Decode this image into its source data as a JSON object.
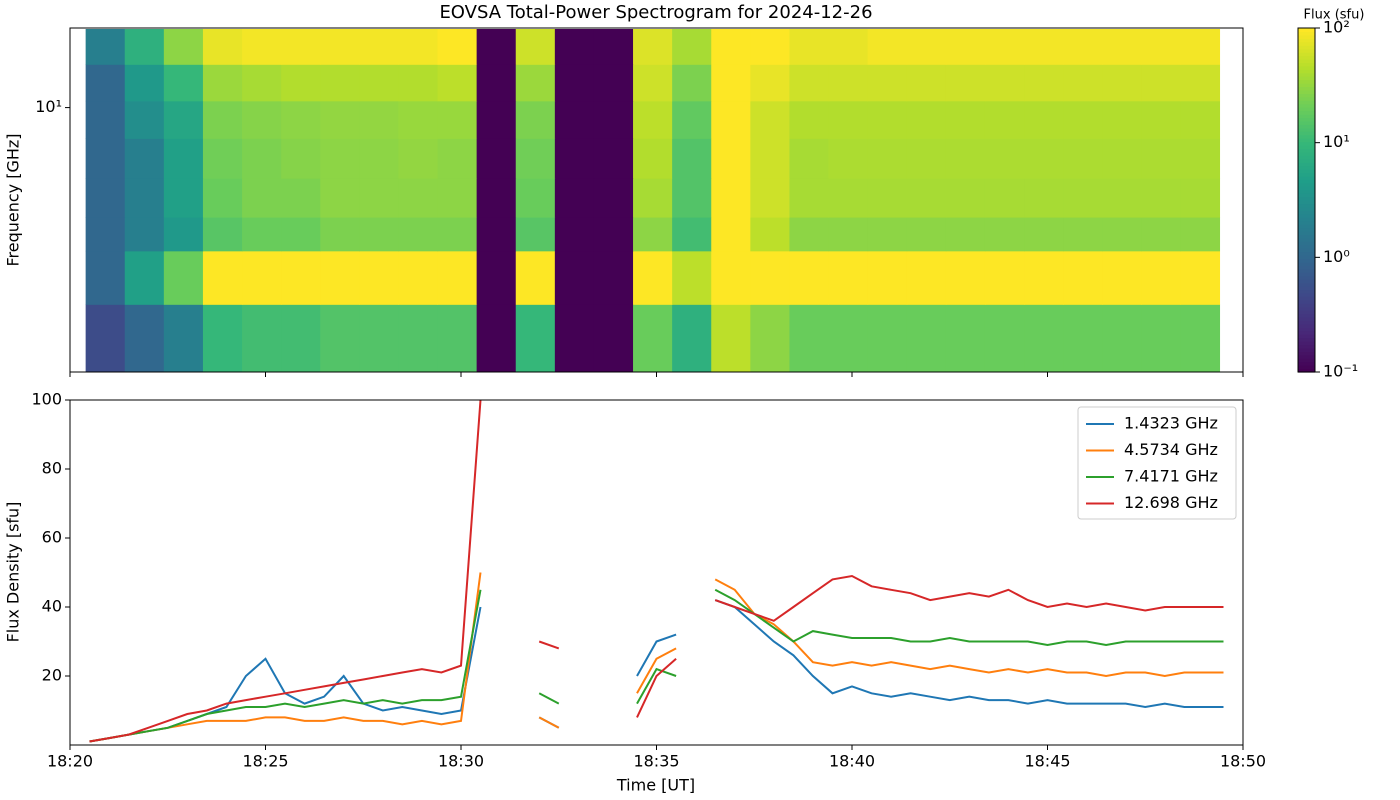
{
  "chart_data": [
    {
      "type": "heatmap",
      "title": "EOVSA Total-Power Spectrogram for 2024-12-26",
      "ylabel": "Frequency [GHz]",
      "log_y": true,
      "xlim": [
        1100,
        1130
      ],
      "ylim": [
        1,
        20
      ],
      "yticks": [
        {
          "value": 10,
          "label": "10¹"
        }
      ],
      "x": [
        1100.9,
        1101.9,
        1102.9,
        1103.9,
        1104.9,
        1105.9,
        1106.9,
        1107.9,
        1108.9,
        1109.9,
        1110.9,
        1111.9,
        1112.9,
        1113.9,
        1114.9,
        1115.9,
        1116.9,
        1117.9,
        1118.9,
        1119.9,
        1120.9,
        1121.9,
        1122.9,
        1123.9,
        1124.9,
        1125.9,
        1126.9,
        1127.9,
        1128.9
      ],
      "y": [
        1.3,
        2.5,
        3.3,
        4.5,
        6.5,
        9,
        12.5,
        17
      ],
      "z": [
        [
          0.5,
          1,
          2,
          10,
          12,
          12,
          15,
          15,
          15,
          15,
          0.1,
          10,
          0.1,
          0.1,
          20,
          8,
          50,
          30,
          20,
          20,
          20,
          20,
          20,
          20,
          20,
          20,
          20,
          20,
          20
        ],
        [
          1,
          5,
          20,
          100,
          100,
          100,
          100,
          100,
          100,
          100,
          0.1,
          100,
          0.1,
          0.1,
          100,
          50,
          100,
          100,
          100,
          100,
          100,
          100,
          100,
          100,
          100,
          100,
          100,
          100,
          100
        ],
        [
          1,
          2,
          4,
          16,
          20,
          20,
          25,
          25,
          25,
          25,
          0.1,
          16,
          0.1,
          0.1,
          30,
          12,
          100,
          50,
          30,
          30,
          30,
          30,
          30,
          30,
          30,
          30,
          30,
          30,
          30
        ],
        [
          1,
          2,
          5,
          20,
          25,
          25,
          30,
          30,
          30,
          30,
          0.1,
          20,
          0.1,
          0.1,
          40,
          15,
          100,
          60,
          40,
          40,
          40,
          40,
          40,
          40,
          40,
          40,
          40,
          40,
          40
        ],
        [
          1,
          2,
          5,
          22,
          25,
          28,
          30,
          30,
          32,
          30,
          0.1,
          22,
          0.1,
          0.1,
          45,
          15,
          100,
          60,
          40,
          42,
          42,
          42,
          42,
          42,
          42,
          42,
          42,
          42,
          42
        ],
        [
          1,
          3,
          6,
          25,
          28,
          30,
          32,
          32,
          34,
          34,
          0.1,
          25,
          0.1,
          0.1,
          50,
          18,
          100,
          60,
          45,
          45,
          45,
          45,
          45,
          45,
          45,
          45,
          45,
          45,
          45
        ],
        [
          1,
          4,
          10,
          35,
          40,
          45,
          45,
          45,
          45,
          50,
          0.1,
          35,
          0.1,
          0.1,
          60,
          25,
          100,
          80,
          60,
          60,
          60,
          60,
          60,
          60,
          60,
          60,
          60,
          60,
          60
        ],
        [
          2,
          8,
          30,
          80,
          90,
          90,
          90,
          90,
          90,
          100,
          0.1,
          60,
          0.1,
          0.1,
          70,
          40,
          100,
          100,
          80,
          80,
          90,
          90,
          90,
          90,
          90,
          90,
          90,
          90,
          90
        ]
      ],
      "colorbar": {
        "label": "Flux (sfu)",
        "log": true,
        "lim": [
          0.1,
          100
        ],
        "ticks": [
          {
            "value": 0.1,
            "label": "10⁻¹"
          },
          {
            "value": 1,
            "label": "10⁰"
          },
          {
            "value": 10,
            "label": "10¹"
          },
          {
            "value": 100,
            "label": "10²"
          }
        ]
      }
    },
    {
      "type": "line",
      "xlabel": "Time [UT]",
      "ylabel": "Flux Density [sfu]",
      "xlim": [
        1100,
        1130
      ],
      "ylim": [
        0,
        100
      ],
      "xticks": [
        {
          "value": 1100,
          "label": "18:20"
        },
        {
          "value": 1105,
          "label": "18:25"
        },
        {
          "value": 1110,
          "label": "18:30"
        },
        {
          "value": 1115,
          "label": "18:35"
        },
        {
          "value": 1120,
          "label": "18:40"
        },
        {
          "value": 1125,
          "label": "18:45"
        },
        {
          "value": 1130,
          "label": "18:50"
        }
      ],
      "yticks": [
        20,
        40,
        60,
        80,
        100
      ],
      "legend": "upper right",
      "x": [
        1100.5,
        1101,
        1101.5,
        1102,
        1102.5,
        1103,
        1103.5,
        1104,
        1104.5,
        1105,
        1105.5,
        1106,
        1106.5,
        1107,
        1107.5,
        1108,
        1108.5,
        1109,
        1109.5,
        1110,
        1110.5,
        1111,
        1111.5,
        1112,
        1112.5,
        1113,
        1113.5,
        1114,
        1114.5,
        1115,
        1115.5,
        1116,
        1116.5,
        1117,
        1117.5,
        1118,
        1118.5,
        1119,
        1119.5,
        1120,
        1120.5,
        1121,
        1121.5,
        1122,
        1122.5,
        1123,
        1123.5,
        1124,
        1124.5,
        1125,
        1125.5,
        1126,
        1126.5,
        1127,
        1127.5,
        1128,
        1128.5,
        1129,
        1129.5
      ],
      "series": [
        {
          "name": "1.4323 GHz",
          "color": "#1f77b4",
          "values": [
            1,
            2,
            3,
            4,
            5,
            7,
            9,
            11,
            20,
            25,
            15,
            12,
            14,
            20,
            12,
            10,
            11,
            10,
            9,
            10,
            40,
            null,
            null,
            8,
            5,
            null,
            null,
            null,
            20,
            30,
            32,
            null,
            42,
            40,
            35,
            30,
            26,
            20,
            15,
            17,
            15,
            14,
            15,
            14,
            13,
            14,
            13,
            13,
            12,
            13,
            12,
            12,
            12,
            12,
            11,
            12,
            11,
            11,
            11
          ]
        },
        {
          "name": "4.5734 GHz",
          "color": "#ff7f0e",
          "values": [
            1,
            2,
            3,
            4,
            5,
            6,
            7,
            7,
            7,
            8,
            8,
            7,
            7,
            8,
            7,
            7,
            6,
            7,
            6,
            7,
            50,
            null,
            null,
            8,
            5,
            null,
            null,
            null,
            15,
            25,
            28,
            null,
            48,
            45,
            38,
            35,
            30,
            24,
            23,
            24,
            23,
            24,
            23,
            22,
            23,
            22,
            21,
            22,
            21,
            22,
            21,
            21,
            20,
            21,
            21,
            20,
            21,
            21,
            21
          ]
        },
        {
          "name": "7.4171 GHz",
          "color": "#2ca02c",
          "values": [
            1,
            2,
            3,
            4,
            5,
            7,
            9,
            10,
            11,
            11,
            12,
            11,
            12,
            13,
            12,
            13,
            12,
            13,
            13,
            14,
            45,
            null,
            null,
            15,
            12,
            null,
            null,
            null,
            12,
            22,
            20,
            null,
            45,
            42,
            38,
            34,
            30,
            33,
            32,
            31,
            31,
            31,
            30,
            30,
            31,
            30,
            30,
            30,
            30,
            29,
            30,
            30,
            29,
            30,
            30,
            30,
            30,
            30,
            30
          ]
        },
        {
          "name": "12.698 GHz",
          "color": "#d62728",
          "values": [
            1,
            2,
            3,
            5,
            7,
            9,
            10,
            12,
            13,
            14,
            15,
            16,
            17,
            18,
            19,
            20,
            21,
            22,
            21,
            23,
            100,
            null,
            null,
            30,
            28,
            null,
            null,
            null,
            8,
            20,
            25,
            null,
            42,
            40,
            38,
            36,
            40,
            44,
            48,
            49,
            46,
            45,
            44,
            42,
            43,
            44,
            43,
            45,
            42,
            40,
            41,
            40,
            41,
            40,
            39,
            40,
            40,
            40,
            40
          ]
        }
      ]
    }
  ]
}
